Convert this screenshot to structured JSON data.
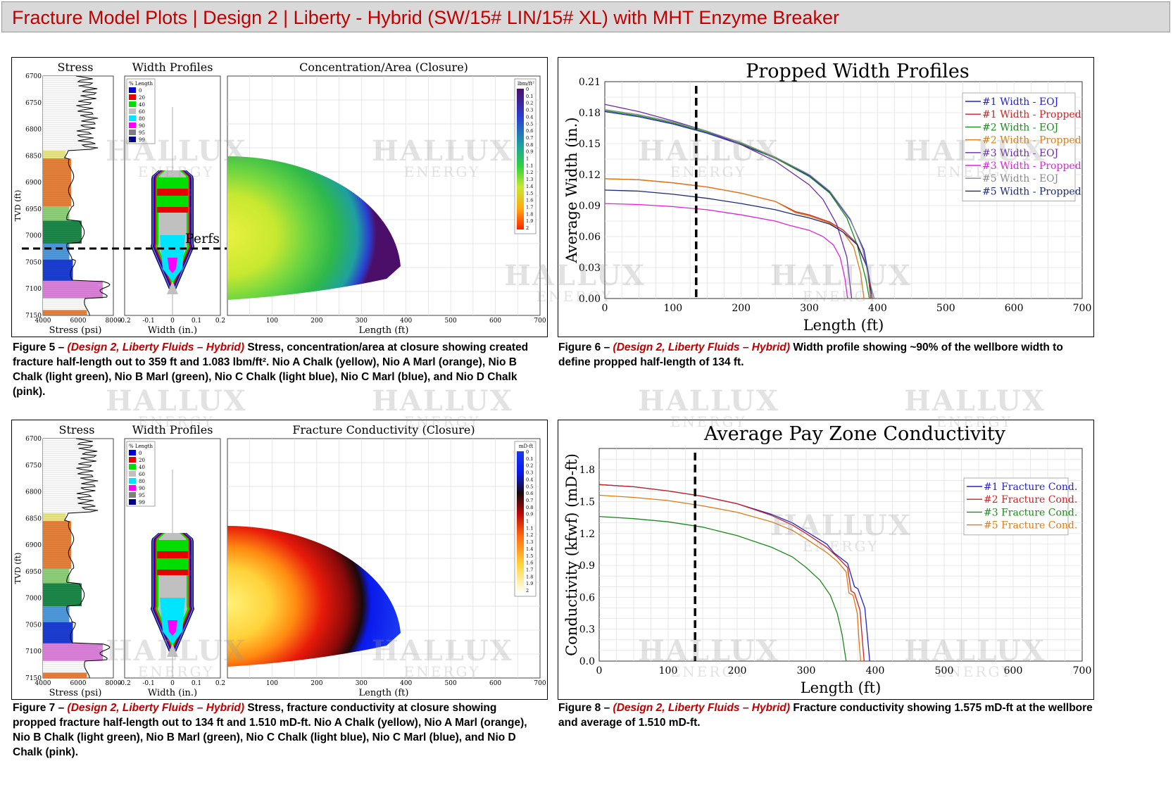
{
  "banner": {
    "title": "Fracture Model Plots | Design 2 | Liberty - Hybrid (SW/15# LIN/15# XL) with MHT Enzyme Breaker"
  },
  "watermark": {
    "line1": "HALLUX",
    "line2": "ENERGY"
  },
  "colors": {
    "yellow": "#ecea85",
    "orange": "#e8823a",
    "lightgreen": "#8fd37a",
    "green": "#1e8a4a",
    "lightblue": "#4f9be0",
    "blue": "#1b3fd6",
    "pink": "#de82de"
  },
  "fig5": {
    "stress_title": "Stress",
    "width_title": "Width Profiles",
    "main_title": "Concentration/Area (Closure)",
    "tvd_label": "TVD (ft)",
    "tvd_ticks": [
      "6700",
      "6750",
      "6800",
      "6850",
      "6900",
      "6950",
      "7000",
      "7050",
      "7100",
      "7150"
    ],
    "stress_ticks": [
      "4000",
      "6000",
      "8000"
    ],
    "stress_xlabel": "Stress (psi)",
    "width_ticks": [
      "-0.2",
      "-0.1",
      "0",
      "0.1",
      "0.2"
    ],
    "width_xlabel": "Width (in.)",
    "length_ticks": [
      "100",
      "200",
      "300",
      "400",
      "500",
      "600",
      "700"
    ],
    "length_xlabel": "Length (ft)",
    "legend_title": "% Length",
    "legend_items": [
      "0",
      "20",
      "40",
      "60",
      "80",
      "90",
      "95",
      "99"
    ],
    "legend_colors": [
      "#0000dd",
      "#e60000",
      "#00dd00",
      "#c0c0c0",
      "#00e5ff",
      "#ff00ff",
      "#7f7f7f",
      "#00008b"
    ],
    "scale_title": "lbm/ft²",
    "scale_values": [
      "0",
      "0.1",
      "0.2",
      "0.3",
      "0.4",
      "0.5",
      "0.6",
      "0.7",
      "0.8",
      "0.9",
      "1",
      "1.1",
      "1.2",
      "1.3",
      "1.4",
      "1.5",
      "1.6",
      "1.7",
      "1.8",
      "1.9",
      "2"
    ],
    "perfs_label": "Perfs"
  },
  "fig7": {
    "stress_title": "Stress",
    "width_title": "Width Profiles",
    "main_title": "Fracture Conductivity (Closure)",
    "tvd_label": "TVD (ft)",
    "tvd_ticks": [
      "6700",
      "6750",
      "6800",
      "6850",
      "6900",
      "6950",
      "7000",
      "7050",
      "7100",
      "7150"
    ],
    "stress_ticks": [
      "4000",
      "6000",
      "8000"
    ],
    "stress_xlabel": "Stress (psi)",
    "width_ticks": [
      "-0.2",
      "-0.1",
      "0",
      "0.1",
      "0.2"
    ],
    "width_xlabel": "Width (in.)",
    "length_ticks": [
      "100",
      "200",
      "300",
      "400",
      "500",
      "600",
      "700"
    ],
    "length_xlabel": "Length (ft)",
    "legend_title": "% Length",
    "legend_items": [
      "0",
      "20",
      "40",
      "60",
      "80",
      "90",
      "95",
      "99"
    ],
    "legend_colors": [
      "#0000dd",
      "#e60000",
      "#00dd00",
      "#c0c0c0",
      "#00e5ff",
      "#ff00ff",
      "#7f7f7f",
      "#00008b"
    ],
    "scale_title": "mD-ft",
    "scale_values": [
      "0",
      "0.1",
      "0.2",
      "0.3",
      "0.4",
      "0.5",
      "0.6",
      "0.7",
      "0.8",
      "0.9",
      "1",
      "1.1",
      "1.2",
      "1.3",
      "1.4",
      "1.5",
      "1.6",
      "1.7",
      "1.8",
      "1.9",
      "2"
    ]
  },
  "captions": {
    "fig5": {
      "label": "Figure 5 – ",
      "design": "(Design 2, Liberty Fluids – Hybrid)",
      "text": " Stress, concentration/area at closure showing created fracture half-length out to 359 ft and 1.083 lbm/ft². Nio A Chalk (yellow), Nio A Marl (orange), Nio B Chalk (light green), Nio B Marl (green), Nio C Chalk (light blue), Nio C Marl (blue), and Nio D Chalk (pink)."
    },
    "fig6": {
      "label": "Figure 6 – ",
      "design": "(Design 2, Liberty Fluids – Hybrid)",
      "text": " Width profile showing ~90% of the wellbore width to define propped half-length of 134 ft."
    },
    "fig7": {
      "label": "Figure 7 – ",
      "design": "(Design 2, Liberty Fluids – Hybrid)",
      "text": " Stress, fracture conductivity at closure showing propped fracture half-length out to 134 ft and 1.510 mD-ft. Nio A Chalk (yellow), Nio A Marl (orange), Nio B Chalk (light green), Nio B Marl (green), Nio C Chalk (light blue), Nio C Marl (blue), and Nio D Chalk (pink)."
    },
    "fig8": {
      "label": "Figure 8 – ",
      "design": "(Design 2, Liberty Fluids – Hybrid)",
      "text": " Fracture conductivity showing 1.575 mD-ft at the wellbore and average of 1.510 mD-ft."
    }
  },
  "chart_data": [
    {
      "id": "fig6",
      "type": "line",
      "title": "Propped Width Profiles",
      "xlabel": "Length (ft)",
      "ylabel": "Average Width (in.)",
      "xlim": [
        0,
        700
      ],
      "ylim": [
        0,
        0.21
      ],
      "xticks": [
        "0",
        "100",
        "200",
        "300",
        "400",
        "500",
        "600",
        "700"
      ],
      "yticks": [
        "0.00",
        "0.03",
        "0.06",
        "0.09",
        "0.12",
        "0.15",
        "0.18",
        "0.21"
      ],
      "marker_x": 134,
      "series": [
        {
          "name": "#1 Width - EOJ",
          "color": "#2222cc",
          "x": [
            0,
            50,
            100,
            150,
            200,
            250,
            300,
            330,
            360,
            380,
            390,
            395
          ],
          "y": [
            0.181,
            0.176,
            0.169,
            0.16,
            0.149,
            0.136,
            0.119,
            0.103,
            0.076,
            0.047,
            0.012,
            0.0
          ]
        },
        {
          "name": "#1 Width - Propped",
          "color": "#cc2222",
          "x": [
            0,
            50,
            100,
            150,
            200,
            250,
            280,
            300,
            330,
            350,
            370,
            385,
            390
          ],
          "y": [
            0.116,
            0.115,
            0.112,
            0.108,
            0.102,
            0.094,
            0.084,
            0.081,
            0.074,
            0.066,
            0.053,
            0.03,
            0.0
          ]
        },
        {
          "name": "#2 Width - EOJ",
          "color": "#1a8a1a",
          "x": [
            0,
            50,
            100,
            150,
            200,
            250,
            300,
            330,
            355,
            370,
            383,
            388
          ],
          "y": [
            0.182,
            0.177,
            0.17,
            0.161,
            0.15,
            0.136,
            0.118,
            0.102,
            0.078,
            0.052,
            0.018,
            0.0
          ]
        },
        {
          "name": "#2 Width - Propped",
          "color": "#e07a10",
          "x": [
            0,
            50,
            100,
            150,
            200,
            250,
            280,
            300,
            330,
            350,
            365,
            375,
            380
          ],
          "y": [
            0.116,
            0.115,
            0.112,
            0.108,
            0.102,
            0.094,
            0.083,
            0.08,
            0.073,
            0.064,
            0.05,
            0.025,
            0.0
          ]
        },
        {
          "name": "#3 Width - EOJ",
          "color": "#6a2aa8",
          "x": [
            0,
            50,
            100,
            150,
            200,
            250,
            300,
            320,
            340,
            355,
            362
          ],
          "y": [
            0.188,
            0.181,
            0.172,
            0.162,
            0.149,
            0.133,
            0.11,
            0.096,
            0.072,
            0.04,
            0.0
          ]
        },
        {
          "name": "#3 Width - Propped",
          "color": "#dd22dd",
          "x": [
            0,
            50,
            100,
            150,
            200,
            250,
            270,
            300,
            320,
            335,
            345,
            352,
            356
          ],
          "y": [
            0.092,
            0.091,
            0.089,
            0.086,
            0.081,
            0.075,
            0.071,
            0.066,
            0.06,
            0.052,
            0.04,
            0.02,
            0.0
          ]
        },
        {
          "name": "#5 Width - EOJ",
          "color": "#8a8a8a",
          "x": [
            0,
            50,
            100,
            150,
            200,
            250,
            300,
            330,
            360,
            378,
            390,
            395
          ],
          "y": [
            0.183,
            0.178,
            0.171,
            0.162,
            0.151,
            0.137,
            0.12,
            0.104,
            0.077,
            0.048,
            0.012,
            0.0
          ]
        },
        {
          "name": "#5 Width - Propped",
          "color": "#1a2a7a",
          "x": [
            0,
            50,
            100,
            150,
            200,
            250,
            280,
            300,
            330,
            350,
            370,
            385,
            392
          ],
          "y": [
            0.105,
            0.104,
            0.101,
            0.097,
            0.092,
            0.086,
            0.081,
            0.078,
            0.072,
            0.064,
            0.052,
            0.03,
            0.0
          ]
        }
      ]
    },
    {
      "id": "fig8",
      "type": "line",
      "title": "Average Pay Zone Conductivity",
      "xlabel": "Length (ft)",
      "ylabel": "Conductivity (kfwf) (mD-ft)",
      "xlim": [
        0,
        700
      ],
      "ylim": [
        0,
        2.0
      ],
      "xticks": [
        "0",
        "100",
        "200",
        "300",
        "400",
        "500",
        "600",
        "700"
      ],
      "yticks": [
        "0.0",
        "0.3",
        "0.6",
        "0.9",
        "1.2",
        "1.5",
        "1.8"
      ],
      "marker_x": 139,
      "series": [
        {
          "name": "#1 Fracture Cond.",
          "color": "#2222cc",
          "x": [
            0,
            50,
            100,
            150,
            200,
            250,
            280,
            300,
            330,
            340,
            360,
            370,
            375,
            385,
            390,
            392
          ],
          "y": [
            1.66,
            1.64,
            1.6,
            1.55,
            1.48,
            1.38,
            1.3,
            1.22,
            1.1,
            1.02,
            0.92,
            0.7,
            0.68,
            0.5,
            0.15,
            0.0
          ]
        },
        {
          "name": "#2 Fracture Cond.",
          "color": "#cc2222",
          "x": [
            0,
            50,
            100,
            150,
            200,
            250,
            280,
            300,
            330,
            345,
            360,
            365,
            370,
            378,
            382,
            384
          ],
          "y": [
            1.66,
            1.64,
            1.6,
            1.55,
            1.48,
            1.37,
            1.28,
            1.2,
            1.07,
            0.98,
            0.88,
            0.66,
            0.64,
            0.48,
            0.15,
            0.0
          ]
        },
        {
          "name": "#3 Fracture Cond.",
          "color": "#1a8a1a",
          "x": [
            0,
            50,
            100,
            150,
            200,
            250,
            280,
            300,
            320,
            335,
            345,
            352,
            356,
            358
          ],
          "y": [
            1.36,
            1.34,
            1.31,
            1.26,
            1.18,
            1.07,
            0.98,
            0.88,
            0.76,
            0.62,
            0.45,
            0.25,
            0.08,
            0.0
          ]
        },
        {
          "name": "#5 Fracture Cond.",
          "color": "#e07a10",
          "x": [
            0,
            50,
            100,
            150,
            200,
            250,
            280,
            300,
            330,
            345,
            358,
            362,
            368,
            374,
            377,
            379
          ],
          "y": [
            1.56,
            1.54,
            1.51,
            1.46,
            1.4,
            1.31,
            1.23,
            1.15,
            1.02,
            0.94,
            0.84,
            0.64,
            0.62,
            0.45,
            0.15,
            0.0
          ]
        }
      ]
    }
  ]
}
